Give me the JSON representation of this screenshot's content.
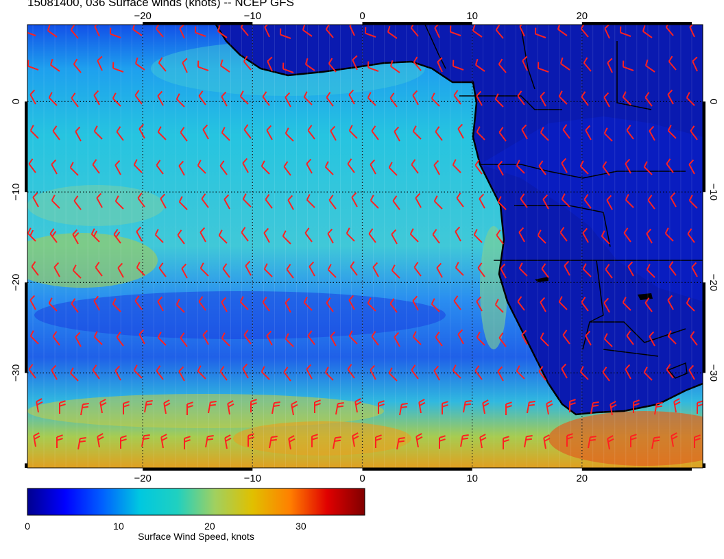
{
  "title": "15081400, 036 Surface winds (knots) -- NCEP GFS",
  "map": {
    "lon_range": [
      -30.5,
      31
    ],
    "lat_range": [
      -40.5,
      8.5
    ],
    "lon_ticks": [
      -20,
      -10,
      0,
      10,
      20
    ],
    "lat_ticks": [
      0,
      -10,
      -20,
      -30
    ],
    "lon_tick_labels": [
      "−20",
      "−10",
      "0",
      "10",
      "20"
    ],
    "lat_tick_labels": [
      "0",
      "−10",
      "−20",
      "−30"
    ],
    "wind_barb_color": "#ff2020",
    "coastline_color": "#000000",
    "gridline_style": "dotted"
  },
  "colorbar": {
    "label": "Surface Wind Speed, knots",
    "range": [
      0,
      37
    ],
    "ticks": [
      0,
      10,
      20,
      30
    ],
    "tick_labels": [
      "0",
      "10",
      "20",
      "30"
    ],
    "colormap": [
      "#00008f",
      "#0000ff",
      "#0060ff",
      "#00c8e0",
      "#20d0c0",
      "#a0d060",
      "#e0c000",
      "#ff8000",
      "#e00000",
      "#800000"
    ]
  }
}
